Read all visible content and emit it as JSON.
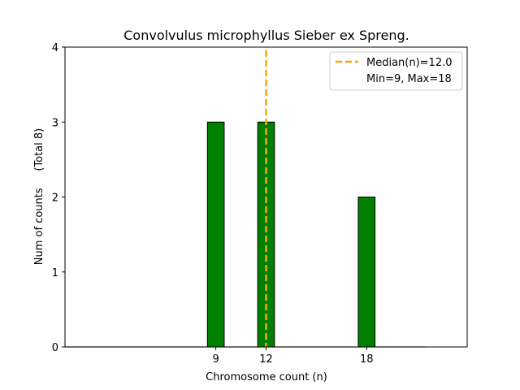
{
  "chart_data": {
    "type": "bar",
    "title": "Convolvulus microphyllus Sieber ex Spreng.",
    "xlabel": "Chromosome count (n)",
    "ylabel": "Num of counts     (Total 8)",
    "xlim": [
      0,
      24
    ],
    "ylim": [
      0,
      4
    ],
    "x_ticks": [
      9,
      12,
      18
    ],
    "y_ticks": [
      0,
      1,
      2,
      3,
      4
    ],
    "grid": false,
    "bar_color": "#008000",
    "bar_width": 1,
    "zero_bar_range": [
      0,
      21.5
    ],
    "series": [
      {
        "name": "counts",
        "x": [
          9,
          12,
          18
        ],
        "values": [
          3,
          3,
          2
        ]
      }
    ],
    "median_line": {
      "x": 12.0,
      "color": "#FFA500",
      "style": "dashed"
    },
    "legend": {
      "position": "top-right",
      "entries": [
        "Median(n)=12.0",
        "Min=9, Max=18"
      ]
    }
  }
}
